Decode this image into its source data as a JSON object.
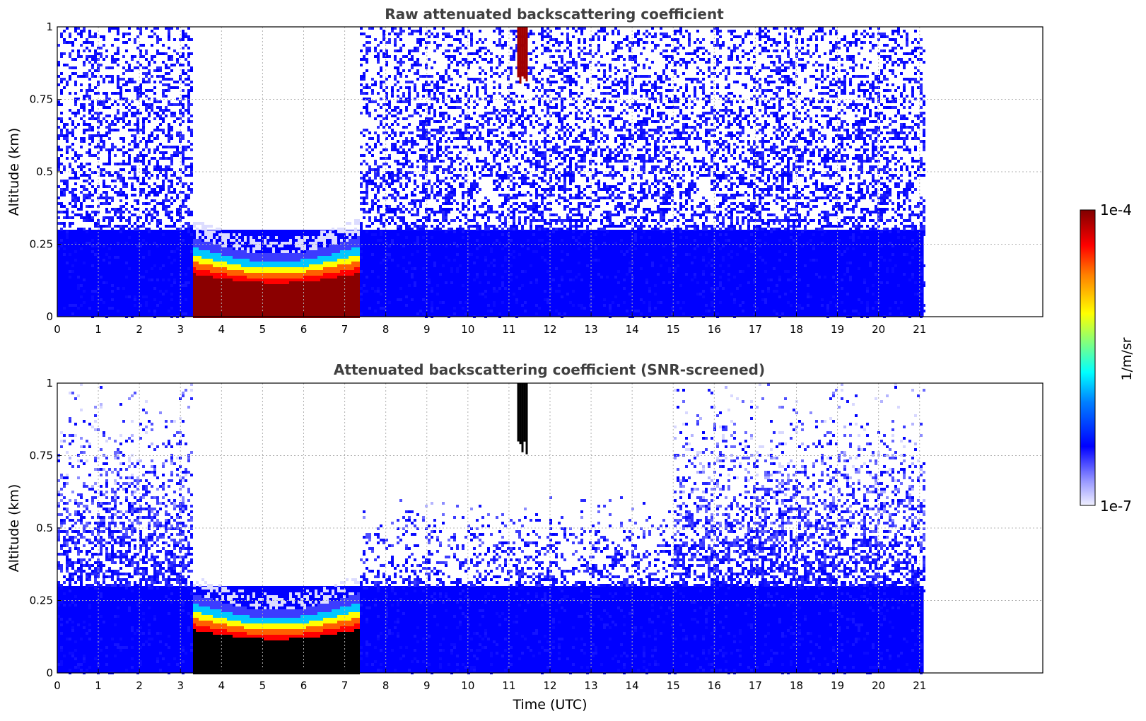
{
  "chart_data": [
    {
      "type": "heatmap",
      "title": "Raw attenuated backscattering coefficient",
      "xlabel": "",
      "ylabel": "Altitude (km)",
      "xlim": [
        0,
        24
      ],
      "ylim": [
        0,
        1
      ],
      "x_ticks": [
        0,
        1,
        2,
        3,
        4,
        5,
        6,
        7,
        8,
        9,
        10,
        11,
        12,
        13,
        14,
        15,
        16,
        17,
        18,
        19,
        20,
        21
      ],
      "y_ticks": [
        "0",
        "0.25",
        "0.5",
        "0.75",
        "1"
      ],
      "grid": true,
      "data_extent_hours": [
        0,
        21.1
      ],
      "features": {
        "fog_layer": {
          "start": 3.25,
          "end": 7.3,
          "top_km": 0.2
        },
        "noise_free_gap": {
          "start": 3.25,
          "end": 7.3,
          "above_km": 0.3
        },
        "high_cloud": {
          "start": 11.2,
          "end": 11.45,
          "bottom_km": 0.85
        }
      }
    },
    {
      "type": "heatmap",
      "title": "Attenuated backscattering coefficient (SNR-screened)",
      "xlabel": "Time (UTC)",
      "ylabel": "Altitude (km)",
      "xlim": [
        0,
        24
      ],
      "ylim": [
        0,
        1
      ],
      "x_ticks": [
        0,
        1,
        2,
        3,
        4,
        5,
        6,
        7,
        8,
        9,
        10,
        11,
        12,
        13,
        14,
        15,
        16,
        17,
        18,
        19,
        20,
        21
      ],
      "y_ticks": [
        "0",
        "0.25",
        "0.5",
        "0.75",
        "1"
      ],
      "grid": true,
      "data_extent_hours": [
        0,
        21.1
      ],
      "features": {
        "fog_layer": {
          "start": 3.25,
          "end": 7.3,
          "top_km": 0.2
        },
        "high_cloud": {
          "start": 11.2,
          "end": 11.45,
          "bottom_km": 0.8
        }
      }
    }
  ],
  "colorbar": {
    "label": "1/m/sr",
    "max_label": "1e-4",
    "min_label": "1e-7",
    "scale": "log",
    "colormap": [
      "#eeeeff",
      "#8c8cff",
      "#0000ff",
      "#00ffff",
      "#ffff00",
      "#ff0000",
      "#800000"
    ]
  }
}
